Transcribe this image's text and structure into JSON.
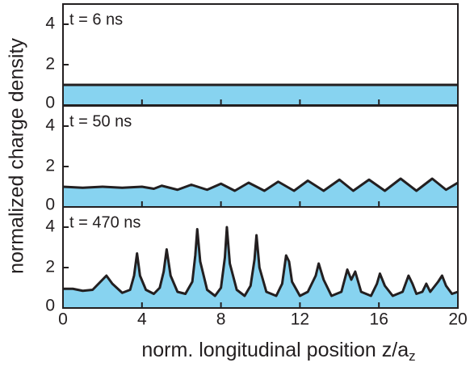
{
  "chart_data": [
    {
      "type": "area",
      "annotation": "t = 6 ns",
      "color": "#87d3f0",
      "line_color": "#231f20",
      "x": [
        0,
        20
      ],
      "values": [
        1,
        1
      ],
      "xlim": [
        0,
        20
      ],
      "xticks": [
        0,
        4,
        8,
        12,
        16,
        20
      ],
      "ylim": [
        0,
        5
      ],
      "yticks": [
        0,
        2,
        4
      ]
    },
    {
      "type": "area",
      "annotation": "t = 50 ns",
      "color": "#87d3f0",
      "line_color": "#231f20",
      "ylabel": "normalized charge density",
      "x": [
        0,
        1,
        2,
        3,
        4,
        4.6,
        5.0,
        5.8,
        6.5,
        7.3,
        8.0,
        8.7,
        9.4,
        10.2,
        10.9,
        11.7,
        12.4,
        13.2,
        14.0,
        14.7,
        15.5,
        16.3,
        17.1,
        17.9,
        18.7,
        19.4,
        20
      ],
      "values": [
        1.0,
        0.95,
        1.0,
        0.95,
        1.0,
        0.9,
        1.05,
        0.85,
        1.1,
        0.85,
        1.15,
        0.8,
        1.2,
        0.8,
        1.25,
        0.8,
        1.3,
        0.8,
        1.35,
        0.8,
        1.35,
        0.8,
        1.4,
        0.8,
        1.4,
        0.85,
        1.2
      ],
      "xlim": [
        0,
        20
      ],
      "xticks": [
        0,
        4,
        8,
        12,
        16,
        20
      ],
      "ylim": [
        0,
        5
      ],
      "yticks": [
        0,
        2,
        4
      ]
    },
    {
      "type": "area",
      "annotation": "t = 470 ns",
      "color": "#87d3f0",
      "line_color": "#231f20",
      "xlabel": "norm. longitudinal position z/a",
      "xlabel_subscript": "z",
      "x": [
        0,
        0.5,
        1.0,
        1.5,
        1.9,
        2.2,
        2.5,
        3.0,
        3.4,
        3.6,
        3.75,
        3.9,
        4.2,
        4.6,
        4.9,
        5.1,
        5.25,
        5.45,
        5.8,
        6.2,
        6.55,
        6.7,
        6.8,
        6.95,
        7.3,
        7.7,
        8.0,
        8.2,
        8.3,
        8.45,
        8.8,
        9.2,
        9.5,
        9.7,
        9.8,
        9.95,
        10.3,
        10.8,
        11.1,
        11.3,
        11.45,
        11.6,
        12.0,
        12.4,
        12.8,
        12.95,
        13.2,
        13.6,
        14.1,
        14.4,
        14.6,
        14.8,
        15.1,
        15.6,
        15.9,
        16.05,
        16.3,
        16.7,
        17.2,
        17.5,
        17.7,
        17.9,
        18.2,
        18.4,
        18.6,
        19.0,
        19.2,
        19.4,
        19.7,
        20
      ],
      "values": [
        0.95,
        0.95,
        0.85,
        0.9,
        1.3,
        1.6,
        1.2,
        0.75,
        0.9,
        1.6,
        2.7,
        1.6,
        0.9,
        0.7,
        1.0,
        1.8,
        2.9,
        1.6,
        0.8,
        0.7,
        1.3,
        2.6,
        3.9,
        2.3,
        0.9,
        0.6,
        1.0,
        2.5,
        4.0,
        2.2,
        0.9,
        0.6,
        1.1,
        2.4,
        3.6,
        2.0,
        0.8,
        0.6,
        1.2,
        2.6,
        2.3,
        1.3,
        0.6,
        0.8,
        1.6,
        2.2,
        1.4,
        0.6,
        0.8,
        1.9,
        1.4,
        1.8,
        0.8,
        0.6,
        1.2,
        1.7,
        1.1,
        0.6,
        0.8,
        1.6,
        1.2,
        0.7,
        0.8,
        1.2,
        0.8,
        1.3,
        1.6,
        1.1,
        0.7,
        0.8
      ],
      "xlim": [
        0,
        20
      ],
      "xticks": [
        0,
        4,
        8,
        12,
        16,
        20
      ],
      "ylim": [
        0,
        5
      ],
      "yticks": [
        0,
        2,
        4
      ]
    }
  ]
}
